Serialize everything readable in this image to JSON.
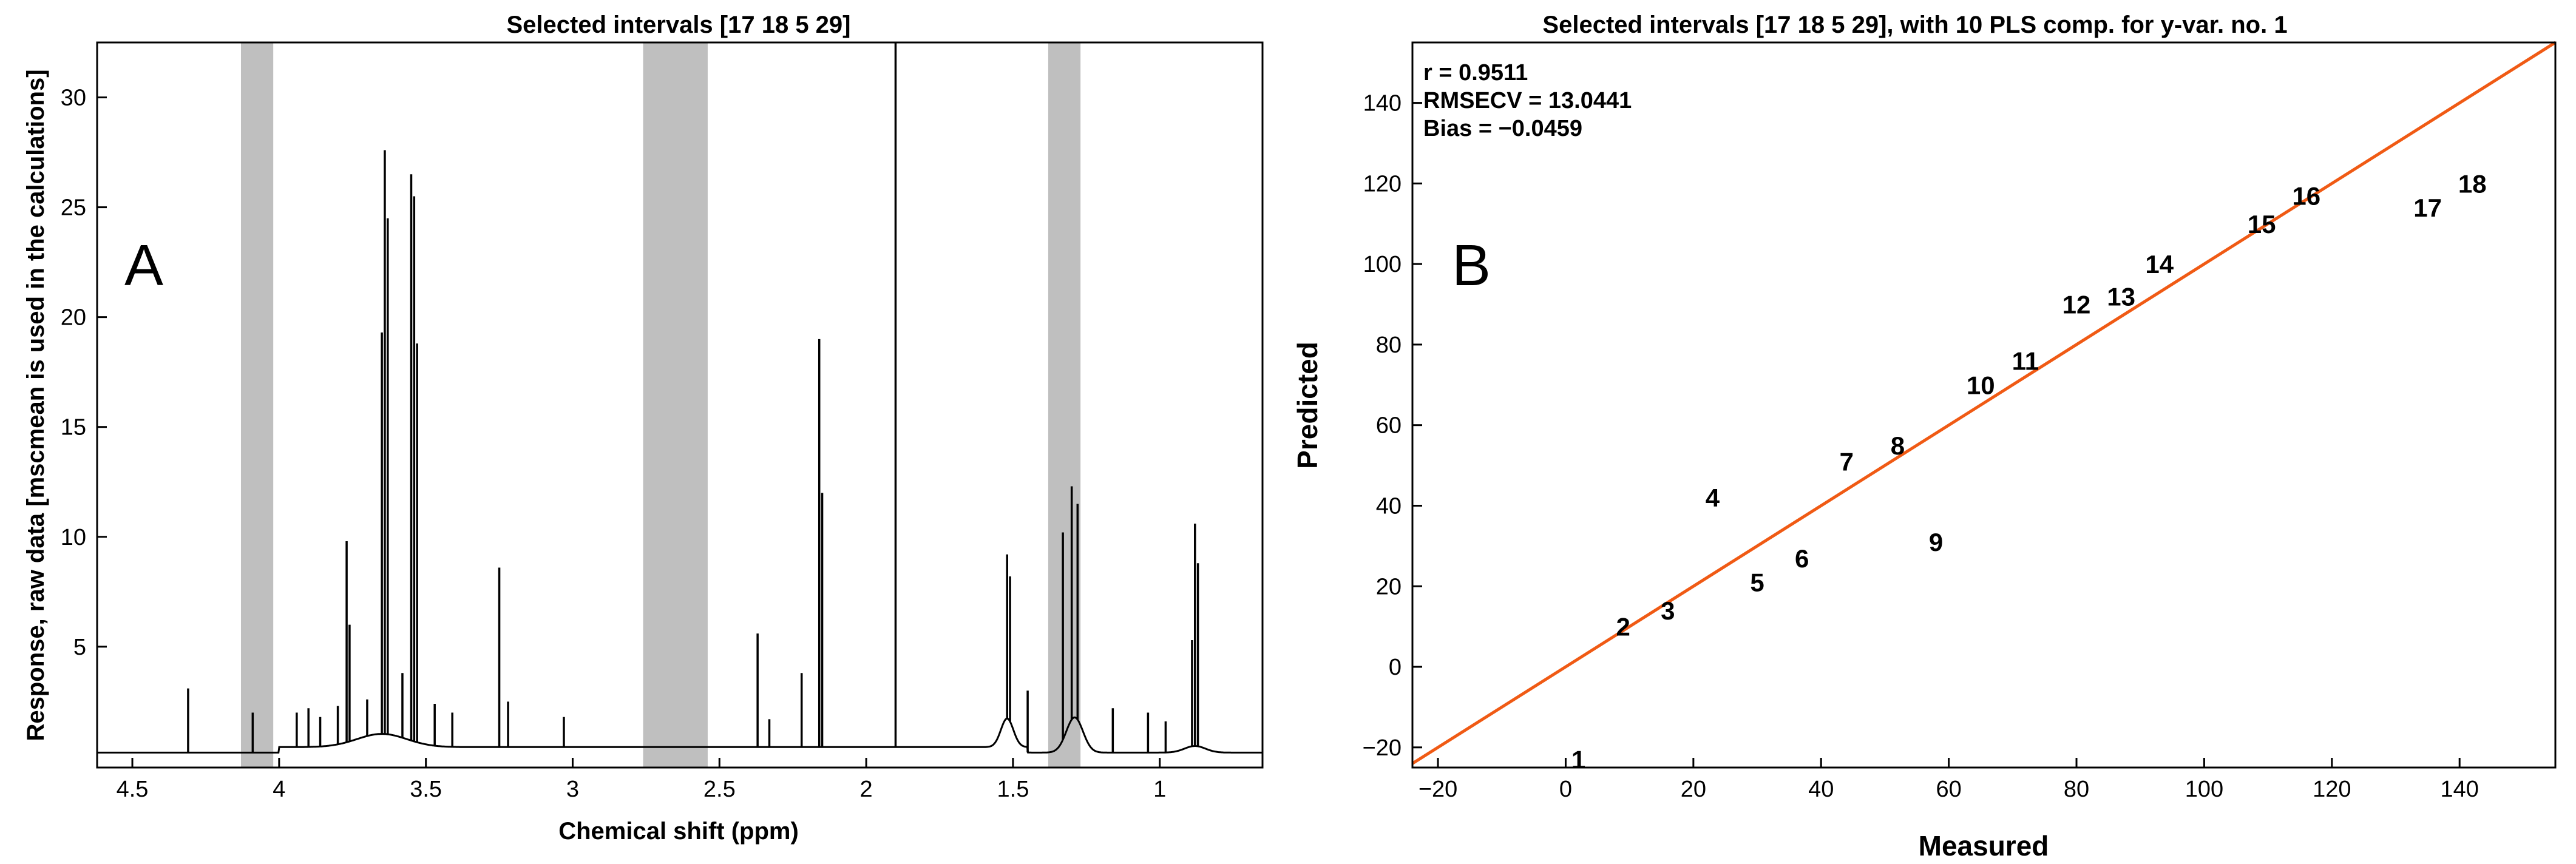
{
  "chart_data": [
    {
      "type": "line",
      "title": "Selected intervals [17  18   5  29]",
      "xlabel": "Chemical shift (ppm)",
      "ylabel": "Response, raw data [mscmean is used in the calculations]",
      "panel_label": "A",
      "xlim": [
        0.65,
        4.62
      ],
      "x_reversed": true,
      "ylim": [
        -0.5,
        32.5
      ],
      "xticks": [
        "4.5",
        "4",
        "3.5",
        "3",
        "2.5",
        "2",
        "1.5",
        "1"
      ],
      "yticks": [
        "5",
        "10",
        "15",
        "20",
        "25",
        "30"
      ],
      "selected_intervals_ppm": [
        [
          4.13,
          4.02
        ],
        [
          2.76,
          2.54
        ],
        [
          1.38,
          1.27
        ]
      ],
      "peaks": [
        {
          "x": 4.31,
          "y": 3.1
        },
        {
          "x": 4.09,
          "y": 2.0
        },
        {
          "x": 3.94,
          "y": 2.0
        },
        {
          "x": 3.9,
          "y": 2.2
        },
        {
          "x": 3.86,
          "y": 1.8
        },
        {
          "x": 3.8,
          "y": 2.3
        },
        {
          "x": 3.77,
          "y": 9.8
        },
        {
          "x": 3.76,
          "y": 6.0
        },
        {
          "x": 3.7,
          "y": 2.6
        },
        {
          "x": 3.65,
          "y": 19.3
        },
        {
          "x": 3.64,
          "y": 27.6
        },
        {
          "x": 3.63,
          "y": 24.5
        },
        {
          "x": 3.58,
          "y": 3.8
        },
        {
          "x": 3.55,
          "y": 26.5
        },
        {
          "x": 3.54,
          "y": 25.5
        },
        {
          "x": 3.53,
          "y": 18.8
        },
        {
          "x": 3.47,
          "y": 2.4
        },
        {
          "x": 3.41,
          "y": 2.0
        },
        {
          "x": 3.25,
          "y": 8.6
        },
        {
          "x": 3.22,
          "y": 2.5
        },
        {
          "x": 3.03,
          "y": 1.8
        },
        {
          "x": 2.37,
          "y": 5.6
        },
        {
          "x": 2.33,
          "y": 1.7
        },
        {
          "x": 2.22,
          "y": 3.8
        },
        {
          "x": 2.16,
          "y": 19.0
        },
        {
          "x": 2.15,
          "y": 12.0
        },
        {
          "x": 1.9,
          "y": 32.5
        },
        {
          "x": 1.52,
          "y": 9.2
        },
        {
          "x": 1.51,
          "y": 8.2
        },
        {
          "x": 1.45,
          "y": 3.0
        },
        {
          "x": 1.33,
          "y": 10.2
        },
        {
          "x": 1.3,
          "y": 12.3
        },
        {
          "x": 1.28,
          "y": 11.5
        },
        {
          "x": 1.16,
          "y": 2.2
        },
        {
          "x": 1.04,
          "y": 2.0
        },
        {
          "x": 0.98,
          "y": 1.6
        },
        {
          "x": 0.89,
          "y": 5.3
        },
        {
          "x": 0.88,
          "y": 10.6
        },
        {
          "x": 0.87,
          "y": 8.8
        }
      ]
    },
    {
      "type": "scatter",
      "title": "Selected intervals [17  18   5  29], with 10 PLS comp. for y-var. no. 1",
      "xlabel": "Measured",
      "ylabel": "Predicted",
      "panel_label": "B",
      "xlim": [
        -24,
        155
      ],
      "ylim": [
        -25,
        155
      ],
      "xticks": [
        "-20",
        "0",
        "20",
        "40",
        "60",
        "80",
        "100",
        "120",
        "140"
      ],
      "yticks": [
        "-20",
        "0",
        "20",
        "40",
        "60",
        "80",
        "100",
        "120",
        "140"
      ],
      "stats": [
        "r = 0.9511",
        "RMSECV = 13.0441",
        "Bias = −0.0459"
      ],
      "fit_line": {
        "x": [
          -24,
          155
        ],
        "y": [
          -24,
          155
        ],
        "color": "#f05a14"
      },
      "points": [
        {
          "label": "1",
          "x": 2,
          "y": -23
        },
        {
          "label": "2",
          "x": 9,
          "y": 10
        },
        {
          "label": "3",
          "x": 16,
          "y": 14
        },
        {
          "label": "4",
          "x": 23,
          "y": 42
        },
        {
          "label": "5",
          "x": 30,
          "y": 21
        },
        {
          "label": "6",
          "x": 37,
          "y": 27
        },
        {
          "label": "7",
          "x": 44,
          "y": 51
        },
        {
          "label": "8",
          "x": 52,
          "y": 55
        },
        {
          "label": "9",
          "x": 58,
          "y": 31
        },
        {
          "label": "10",
          "x": 65,
          "y": 70
        },
        {
          "label": "11",
          "x": 72,
          "y": 76
        },
        {
          "label": "12",
          "x": 80,
          "y": 90
        },
        {
          "label": "13",
          "x": 87,
          "y": 92
        },
        {
          "label": "14",
          "x": 93,
          "y": 100
        },
        {
          "label": "15",
          "x": 109,
          "y": 110
        },
        {
          "label": "16",
          "x": 116,
          "y": 117
        },
        {
          "label": "17",
          "x": 135,
          "y": 114
        },
        {
          "label": "18",
          "x": 142,
          "y": 120
        }
      ]
    }
  ]
}
